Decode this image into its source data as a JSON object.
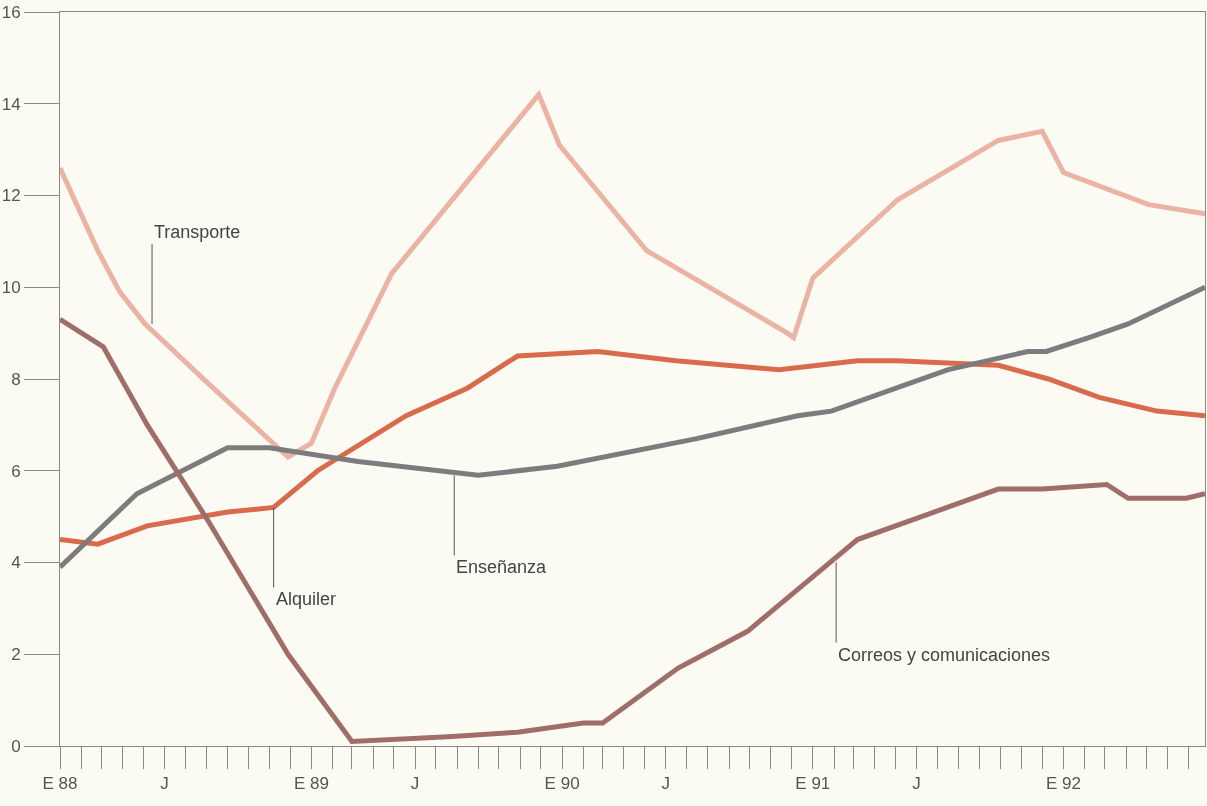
{
  "chart_data": {
    "type": "line",
    "xlim": [
      "1988-01-01",
      "1992-07-25"
    ],
    "ylim": [
      0,
      16
    ],
    "yticks": [
      0,
      2,
      4,
      6,
      8,
      10,
      12,
      14,
      16
    ],
    "xticks": [
      {
        "value": "1988-01",
        "label": "E 88"
      },
      {
        "value": "1988-06",
        "label": "J"
      },
      {
        "value": "1989-01",
        "label": "E 89"
      },
      {
        "value": "1989-06",
        "label": "J"
      },
      {
        "value": "1990-01",
        "label": "E 90"
      },
      {
        "value": "1990-06",
        "label": "J"
      },
      {
        "value": "1991-01",
        "label": "E 91"
      },
      {
        "value": "1991-06",
        "label": "J"
      },
      {
        "value": "1992-01",
        "label": "E 92"
      }
    ],
    "grid": false,
    "legend": false,
    "marker": "none",
    "line_style": "solid",
    "series": [
      {
        "color": "#eab3a3",
        "x": [
          "1988-01-01",
          "1988-02-25",
          "1988-03-28",
          "1988-05-04",
          "1988-08-04",
          "1988-11-28",
          "1989-01-01",
          "1989-02-04",
          "1989-04-28",
          "1989-11-28",
          "1989-12-28",
          "1990-05-04",
          "1990-11-25",
          "1990-12-04",
          "1991-01-01",
          "1991-05-04",
          "1991-09-28",
          "1991-12-01",
          "1992-01-01",
          "1992-05-04",
          "1992-07-25"
        ],
        "values": [
          12.6,
          10.8,
          9.9,
          9.2,
          7.9,
          6.3,
          6.6,
          7.8,
          10.3,
          14.2,
          13.1,
          10.8,
          9.0,
          8.9,
          10.2,
          11.9,
          13.2,
          13.4,
          12.5,
          11.8,
          11.6
        ]
      },
      {
        "color": "#da6a4c",
        "x": [
          "1988-01-01",
          "1988-02-25",
          "1988-05-07",
          "1988-09-01",
          "1988-11-07",
          "1989-01-10",
          "1989-05-19",
          "1989-08-16",
          "1989-10-28",
          "1990-02-22",
          "1990-06-16",
          "1990-11-13",
          "1991-03-07",
          "1991-05-04",
          "1991-09-28",
          "1991-12-10",
          "1992-02-22",
          "1992-05-16",
          "1992-07-25"
        ],
        "values": [
          4.5,
          4.4,
          4.8,
          5.1,
          5.2,
          6.0,
          7.2,
          7.8,
          8.5,
          8.6,
          8.4,
          8.2,
          8.4,
          8.4,
          8.3,
          8.0,
          7.6,
          7.3,
          7.2
        ]
      },
      {
        "color": "#7c7c7c",
        "x": [
          "1988-01-01",
          "1988-04-22",
          "1988-09-01",
          "1988-11-01",
          "1989-03-10",
          "1989-09-01",
          "1989-12-25",
          "1990-07-16",
          "1990-12-10",
          "1991-01-28",
          "1991-07-16",
          "1991-11-10",
          "1991-12-07",
          "1992-02-07",
          "1992-04-04",
          "1992-07-25"
        ],
        "values": [
          3.9,
          5.5,
          6.5,
          6.5,
          6.2,
          5.9,
          6.1,
          6.7,
          7.2,
          7.3,
          8.2,
          8.6,
          8.6,
          8.9,
          9.2,
          10.0
        ]
      },
      {
        "color": "#a06d68",
        "x": [
          "1988-01-01",
          "1988-03-04",
          "1988-05-07",
          "1988-08-04",
          "1988-11-28",
          "1989-03-01",
          "1989-07-19",
          "1989-10-28",
          "1990-02-01",
          "1990-03-01",
          "1990-06-19",
          "1990-09-28",
          "1990-12-25",
          "1991-03-07",
          "1991-09-28",
          "1991-12-01",
          "1992-03-04",
          "1992-04-04",
          "1992-06-28",
          "1992-07-25"
        ],
        "values": [
          9.3,
          8.7,
          7.0,
          4.9,
          2.0,
          0.1,
          0.2,
          0.3,
          0.5,
          0.5,
          1.7,
          2.5,
          3.6,
          4.5,
          5.6,
          5.6,
          5.7,
          5.4,
          5.4,
          5.5
        ]
      }
    ],
    "annotations": [
      {
        "text": "Transporte",
        "x": "1988-05-14",
        "y": 9.2
      },
      {
        "text": "Alquiler",
        "x": "1988-11-07",
        "y": 5.2
      },
      {
        "text": "Enseñanza",
        "x": "1989-07-28",
        "y": 5.9
      },
      {
        "text": "Correos y comunicaciones",
        "x": "1991-02-04",
        "y": 4.0
      }
    ]
  }
}
